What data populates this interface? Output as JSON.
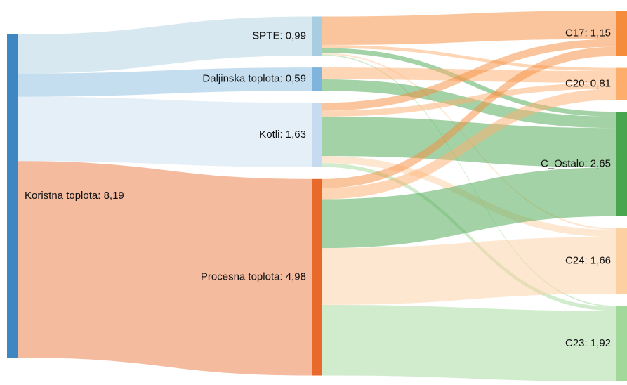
{
  "chart_data": {
    "type": "sankey",
    "nodes": [
      {
        "label": "Koristna toplota: 8,19",
        "value": 8.19,
        "color": "#3f87c2"
      },
      {
        "label": "SPTE: 0,99",
        "value": 0.99,
        "color": "#a6cde0"
      },
      {
        "label": "Daljinska toplota: 0,59",
        "value": 0.59,
        "color": "#7fb5dc"
      },
      {
        "label": "Kotli: 1,63",
        "value": 1.63,
        "color": "#c6dbef"
      },
      {
        "label": "Procesna toplota: 4,98",
        "value": 4.98,
        "color": "#e8692a"
      },
      {
        "label": "C17: 1,15",
        "value": 1.15,
        "color": "#f58c3c"
      },
      {
        "label": "C20: 0,81",
        "value": 0.81,
        "color": "#fdae6b"
      },
      {
        "label": "C_Ostalo: 2,65",
        "value": 2.65,
        "color": "#4aa54f"
      },
      {
        "label": "C24: 1,66",
        "value": 1.66,
        "color": "#fdd0a2"
      },
      {
        "label": "C23: 1,92",
        "value": 1.92,
        "color": "#a1d99b"
      }
    ],
    "links": [
      {
        "source": 0,
        "target": 1,
        "value": 0.99
      },
      {
        "source": 0,
        "target": 2,
        "value": 0.59
      },
      {
        "source": 0,
        "target": 3,
        "value": 1.63
      },
      {
        "source": 0,
        "target": 4,
        "value": 4.98
      },
      {
        "source": 1,
        "target": 5,
        "value": 0.72
      },
      {
        "source": 1,
        "target": 6,
        "value": 0.08
      },
      {
        "source": 1,
        "target": 7,
        "value": 0.12
      },
      {
        "source": 1,
        "target": 8,
        "value": 0.04
      },
      {
        "source": 1,
        "target": 9,
        "value": 0.03
      },
      {
        "source": 2,
        "target": 6,
        "value": 0.3
      },
      {
        "source": 2,
        "target": 7,
        "value": 0.29
      },
      {
        "source": 3,
        "target": 5,
        "value": 0.2
      },
      {
        "source": 3,
        "target": 6,
        "value": 0.15
      },
      {
        "source": 3,
        "target": 7,
        "value": 1.0
      },
      {
        "source": 3,
        "target": 8,
        "value": 0.18
      },
      {
        "source": 3,
        "target": 9,
        "value": 0.1
      },
      {
        "source": 4,
        "target": 5,
        "value": 0.23
      },
      {
        "source": 4,
        "target": 6,
        "value": 0.28
      },
      {
        "source": 4,
        "target": 7,
        "value": 1.24
      },
      {
        "source": 4,
        "target": 8,
        "value": 1.44
      },
      {
        "source": 4,
        "target": 9,
        "value": 1.79
      }
    ]
  }
}
